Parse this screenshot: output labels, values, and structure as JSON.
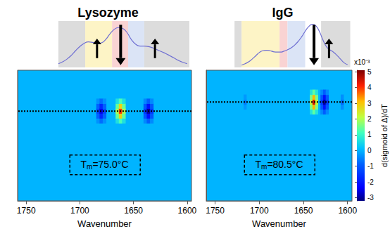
{
  "chart_data": [
    {
      "type": "heatmap",
      "title": "Lysozyme",
      "x_label": "Wavenumber",
      "xlim": [
        1758,
        1596
      ],
      "xticks": [
        1750,
        1700,
        1650,
        1600
      ],
      "ylim": [
        20,
        100
      ],
      "tick_labels": "x",
      "cell_width": 3,
      "cell_height": 3,
      "cells": [
        [
          1683,
          69,
          -0.38
        ],
        [
          1683,
          72,
          -0.88
        ],
        [
          1683,
          75,
          -1.25
        ],
        [
          1683,
          78,
          -0.88
        ],
        [
          1683,
          81,
          -0.38
        ],
        [
          1680,
          69,
          -0.75
        ],
        [
          1680,
          72,
          -1.75
        ],
        [
          1680,
          75,
          -2.5
        ],
        [
          1680,
          78,
          -1.75
        ],
        [
          1680,
          81,
          -0.75
        ],
        [
          1677,
          69,
          -0.38
        ],
        [
          1677,
          72,
          -0.88
        ],
        [
          1677,
          75,
          -1.25
        ],
        [
          1677,
          78,
          -0.88
        ],
        [
          1677,
          81,
          -0.38
        ],
        [
          1665,
          69,
          0.6
        ],
        [
          1665,
          72,
          1.4
        ],
        [
          1665,
          75,
          2.0
        ],
        [
          1665,
          78,
          1.4
        ],
        [
          1665,
          81,
          0.6
        ],
        [
          1662,
          69,
          1.2
        ],
        [
          1662,
          72,
          2.8
        ],
        [
          1662,
          75,
          4.0
        ],
        [
          1662,
          78,
          2.8
        ],
        [
          1662,
          81,
          1.2
        ],
        [
          1659,
          69,
          0.6
        ],
        [
          1659,
          72,
          1.4
        ],
        [
          1659,
          75,
          2.0
        ],
        [
          1659,
          78,
          1.4
        ],
        [
          1659,
          81,
          0.6
        ],
        [
          1639,
          69,
          -0.45
        ],
        [
          1639,
          72,
          -1.05
        ],
        [
          1639,
          75,
          -1.5
        ],
        [
          1639,
          78,
          -1.05
        ],
        [
          1639,
          81,
          -0.45
        ],
        [
          1636,
          69,
          -0.9
        ],
        [
          1636,
          72,
          -2.1
        ],
        [
          1636,
          75,
          -3.0
        ],
        [
          1636,
          78,
          -2.1
        ],
        [
          1636,
          81,
          -0.9
        ],
        [
          1633,
          69,
          -0.45
        ],
        [
          1633,
          72,
          -1.05
        ],
        [
          1633,
          75,
          -1.5
        ],
        [
          1633,
          78,
          -1.05
        ],
        [
          1633,
          81,
          -0.45
        ]
      ],
      "tm": 75.0,
      "tm_label": "Tm=75.0°C",
      "spectrum": {
        "x": [
          1720,
          1716,
          1712,
          1708,
          1704,
          1700,
          1696,
          1692,
          1688,
          1684,
          1680,
          1676,
          1672,
          1668,
          1664,
          1660,
          1656,
          1652,
          1648,
          1644,
          1640,
          1636,
          1632,
          1628,
          1624,
          1620,
          1616,
          1612,
          1608,
          1604,
          1600
        ],
        "values": [
          0.08,
          0.12,
          0.18,
          0.26,
          0.36,
          0.45,
          0.52,
          0.55,
          0.54,
          0.52,
          0.53,
          0.6,
          0.72,
          0.82,
          0.86,
          0.84,
          0.75,
          0.6,
          0.5,
          0.46,
          0.46,
          0.45,
          0.42,
          0.38,
          0.34,
          0.3,
          0.25,
          0.2,
          0.15,
          0.11,
          0.08
        ],
        "ylim": [
          0,
          1
        ],
        "color": "#6f6fd2",
        "bands": [
          {
            "from": 1720,
            "to": 1695,
            "color": "#dcdcdc"
          },
          {
            "from": 1695,
            "to": 1670,
            "color": "#fdf4c6"
          },
          {
            "from": 1670,
            "to": 1655,
            "color": "#f9d3d3"
          },
          {
            "from": 1655,
            "to": 1640,
            "color": "#dbe4f6"
          },
          {
            "from": 1640,
            "to": 1598,
            "color": "#dcdcdc"
          }
        ],
        "arrows": [
          {
            "x": 1684,
            "direction": "up"
          },
          {
            "x": 1662,
            "direction": "down"
          },
          {
            "x": 1630,
            "direction": "up"
          }
        ]
      }
    },
    {
      "type": "heatmap",
      "title": "IgG",
      "x_label": "Wavenumber",
      "xlim": [
        1760,
        1595
      ],
      "xticks": [
        1750,
        1700,
        1650,
        1600
      ],
      "ylim": [
        20,
        100
      ],
      "tick_labels": "x",
      "cell_width": 3,
      "cell_height": 3,
      "cells": [
        [
          1716,
          77.5,
          -0.3
        ],
        [
          1716,
          80.5,
          -0.6
        ],
        [
          1716,
          83.5,
          -0.3
        ],
        [
          1641,
          74.5,
          0.68
        ],
        [
          1641,
          77.5,
          1.58
        ],
        [
          1641,
          80.5,
          2.25
        ],
        [
          1641,
          83.5,
          1.58
        ],
        [
          1641,
          86.5,
          0.68
        ],
        [
          1638,
          74.5,
          1.35
        ],
        [
          1638,
          77.5,
          3.15
        ],
        [
          1638,
          80.5,
          4.5
        ],
        [
          1638,
          83.5,
          3.15
        ],
        [
          1638,
          86.5,
          1.35
        ],
        [
          1635,
          74.5,
          0.68
        ],
        [
          1635,
          77.5,
          1.58
        ],
        [
          1635,
          80.5,
          2.25
        ],
        [
          1635,
          83.5,
          1.58
        ],
        [
          1635,
          86.5,
          0.68
        ],
        [
          1629,
          74.5,
          -0.45
        ],
        [
          1629,
          77.5,
          -1.05
        ],
        [
          1629,
          80.5,
          -1.5
        ],
        [
          1629,
          83.5,
          -1.05
        ],
        [
          1629,
          86.5,
          -0.45
        ],
        [
          1626,
          74.5,
          -0.9
        ],
        [
          1626,
          77.5,
          -2.1
        ],
        [
          1626,
          80.5,
          -3.0
        ],
        [
          1626,
          83.5,
          -2.1
        ],
        [
          1626,
          86.5,
          -0.9
        ],
        [
          1623,
          74.5,
          -0.45
        ],
        [
          1623,
          77.5,
          -1.05
        ],
        [
          1623,
          80.5,
          -1.5
        ],
        [
          1623,
          83.5,
          -1.05
        ],
        [
          1623,
          86.5,
          -0.45
        ],
        [
          1606,
          77.5,
          -0.4
        ],
        [
          1606,
          80.5,
          -0.8
        ],
        [
          1606,
          83.5,
          -0.4
        ]
      ],
      "tm": 80.5,
      "tm_label": "Tm=80.5°C",
      "spectrum": {
        "x": [
          1720,
          1716,
          1712,
          1708,
          1704,
          1700,
          1696,
          1692,
          1688,
          1684,
          1680,
          1676,
          1672,
          1668,
          1664,
          1660,
          1656,
          1652,
          1648,
          1644,
          1640,
          1636,
          1632,
          1628,
          1624,
          1620,
          1616,
          1612,
          1608,
          1604,
          1600
        ],
        "values": [
          0.05,
          0.08,
          0.12,
          0.18,
          0.25,
          0.32,
          0.36,
          0.37,
          0.36,
          0.34,
          0.33,
          0.33,
          0.35,
          0.38,
          0.42,
          0.48,
          0.56,
          0.66,
          0.78,
          0.88,
          0.93,
          0.9,
          0.78,
          0.6,
          0.45,
          0.38,
          0.33,
          0.26,
          0.18,
          0.1,
          0.06
        ],
        "ylim": [
          0,
          1
        ],
        "color": "#6f6fd2",
        "bands": [
          {
            "from": 1728,
            "to": 1720,
            "color": "#dcdcdc"
          },
          {
            "from": 1720,
            "to": 1677,
            "color": "#fdf4c6"
          },
          {
            "from": 1677,
            "to": 1668,
            "color": "#f9d3d3"
          },
          {
            "from": 1668,
            "to": 1648,
            "color": "#dbe4f6"
          },
          {
            "from": 1630,
            "to": 1597,
            "color": "#dcdcdc"
          }
        ],
        "arrows": [
          {
            "x": 1638,
            "direction": "down"
          },
          {
            "x": 1621,
            "direction": "up"
          }
        ]
      },
      "colorbar": {
        "label": "d(sigmoid of Δ)/dT",
        "unit_label": "x10⁻³",
        "range": [
          -3.2,
          5.1
        ],
        "ticks": [
          5,
          4,
          3,
          2,
          1,
          0,
          -1,
          -2,
          -3
        ]
      }
    }
  ]
}
